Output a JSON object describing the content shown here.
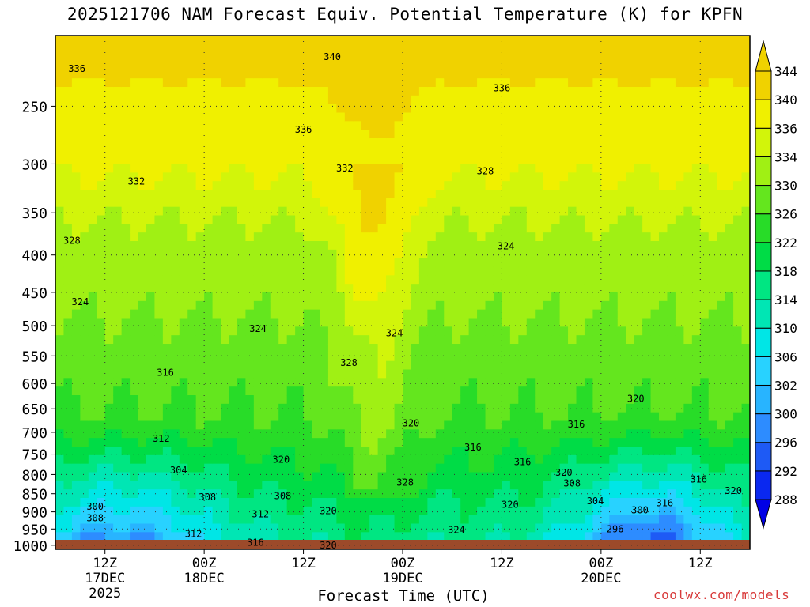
{
  "chart_data": {
    "type": "heatmap",
    "title": "2025121706 NAM Forecast Equiv. Potential Temperature (K) for KPFN",
    "xlabel": "Forecast Time (UTC)",
    "ylabel": "",
    "x_ticks": [
      {
        "hour": 6,
        "lines": [
          "12Z",
          "17DEC",
          "2025"
        ]
      },
      {
        "hour": 18,
        "lines": [
          "00Z",
          "18DEC"
        ]
      },
      {
        "hour": 30,
        "lines": [
          "12Z"
        ]
      },
      {
        "hour": 42,
        "lines": [
          "00Z",
          "19DEC"
        ]
      },
      {
        "hour": 54,
        "lines": [
          "12Z"
        ]
      },
      {
        "hour": 66,
        "lines": [
          "00Z",
          "20DEC"
        ]
      },
      {
        "hour": 78,
        "lines": [
          "12Z"
        ]
      }
    ],
    "x_range_hours": [
      0,
      84
    ],
    "y_ticks": [
      250,
      300,
      350,
      400,
      450,
      500,
      550,
      600,
      650,
      700,
      750,
      800,
      850,
      900,
      950,
      1000
    ],
    "y_range_hpa": [
      200,
      1013
    ],
    "y_log_pressure": true,
    "grid": true,
    "colorbar": {
      "levels": [
        288,
        292,
        296,
        300,
        302,
        306,
        310,
        314,
        318,
        322,
        326,
        330,
        334,
        336,
        340,
        344
      ],
      "colors": [
        "#0000e6",
        "#0a28f0",
        "#1e5af5",
        "#2d8cff",
        "#28b4ff",
        "#28d2ff",
        "#00e6e6",
        "#00e6b4",
        "#00e682",
        "#00dc46",
        "#28dc28",
        "#64e61e",
        "#a0f014",
        "#d2f50a",
        "#f0f000",
        "#f0d200"
      ],
      "extend": "both",
      "placement": "right"
    },
    "contour_labels": [
      {
        "t": 2.6,
        "p": 222,
        "text": "336"
      },
      {
        "t": 33.5,
        "p": 214,
        "text": "340"
      },
      {
        "t": 54.0,
        "p": 236,
        "text": "336"
      },
      {
        "t": 30.0,
        "p": 269,
        "text": "336"
      },
      {
        "t": 9.8,
        "p": 317,
        "text": "332"
      },
      {
        "t": 35.0,
        "p": 304,
        "text": "332"
      },
      {
        "t": 52.0,
        "p": 307,
        "text": "328"
      },
      {
        "t": 2.0,
        "p": 382,
        "text": "328"
      },
      {
        "t": 54.5,
        "p": 389,
        "text": "324"
      },
      {
        "t": 3.0,
        "p": 464,
        "text": "324"
      },
      {
        "t": 24.5,
        "p": 505,
        "text": "324"
      },
      {
        "t": 41.0,
        "p": 512,
        "text": "324"
      },
      {
        "t": 35.5,
        "p": 562,
        "text": "328"
      },
      {
        "t": 13.3,
        "p": 580,
        "text": "316"
      },
      {
        "t": 70.2,
        "p": 630,
        "text": "320"
      },
      {
        "t": 43.0,
        "p": 680,
        "text": "320"
      },
      {
        "t": 63.0,
        "p": 683,
        "text": "316"
      },
      {
        "t": 12.8,
        "p": 714,
        "text": "312"
      },
      {
        "t": 50.5,
        "p": 734,
        "text": "316"
      },
      {
        "t": 27.3,
        "p": 763,
        "text": "320"
      },
      {
        "t": 56.5,
        "p": 769,
        "text": "316"
      },
      {
        "t": 14.9,
        "p": 789,
        "text": "304"
      },
      {
        "t": 61.5,
        "p": 795,
        "text": "320"
      },
      {
        "t": 42.3,
        "p": 820,
        "text": "328"
      },
      {
        "t": 62.5,
        "p": 822,
        "text": "308"
      },
      {
        "t": 77.8,
        "p": 812,
        "text": "316"
      },
      {
        "t": 18.4,
        "p": 859,
        "text": "308"
      },
      {
        "t": 27.5,
        "p": 856,
        "text": "308"
      },
      {
        "t": 82.0,
        "p": 842,
        "text": "320"
      },
      {
        "t": 65.3,
        "p": 870,
        "text": "304"
      },
      {
        "t": 73.7,
        "p": 875,
        "text": "316"
      },
      {
        "t": 4.8,
        "p": 885,
        "text": "300"
      },
      {
        "t": 70.7,
        "p": 895,
        "text": "300"
      },
      {
        "t": 24.8,
        "p": 907,
        "text": "312"
      },
      {
        "t": 33.0,
        "p": 898,
        "text": "320"
      },
      {
        "t": 55.0,
        "p": 880,
        "text": "320"
      },
      {
        "t": 4.8,
        "p": 918,
        "text": "308"
      },
      {
        "t": 67.7,
        "p": 950,
        "text": "296"
      },
      {
        "t": 48.5,
        "p": 953,
        "text": "324"
      },
      {
        "t": 16.7,
        "p": 965,
        "text": "312"
      },
      {
        "t": 24.2,
        "p": 992,
        "text": "316"
      },
      {
        "t": 33.0,
        "p": 1001,
        "text": "320"
      }
    ]
  },
  "credit": "coolwx.com/models"
}
